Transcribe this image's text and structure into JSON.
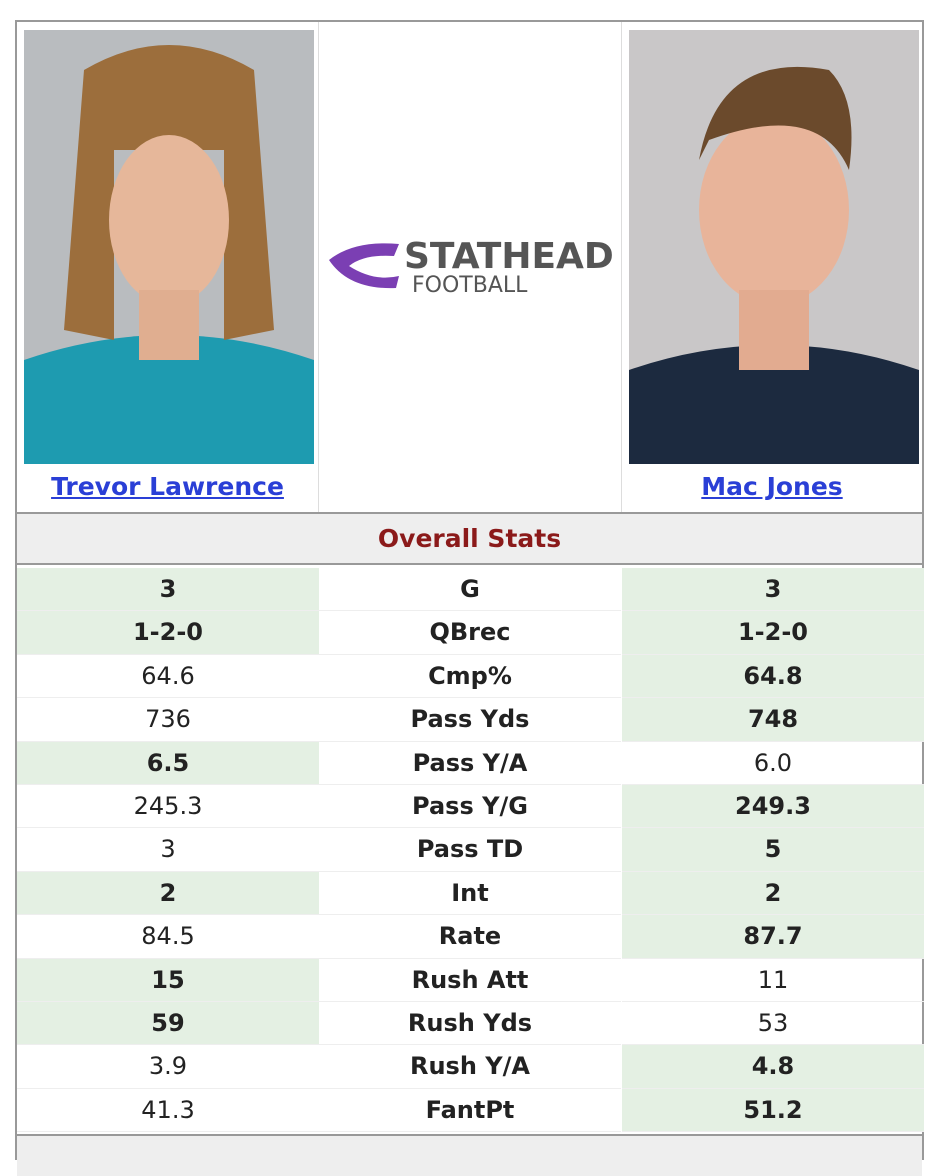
{
  "players": [
    {
      "name": "Trevor Lawrence",
      "jersey": "#1e9bb0"
    },
    {
      "name": "Mac Jones",
      "jersey": "#1c2a3f"
    }
  ],
  "logo": {
    "line1": "STATHEAD",
    "line2": "FOOTBALL"
  },
  "section": {
    "title": "Overall Stats"
  },
  "rows": [
    {
      "left": "3",
      "label": "G",
      "right": "3",
      "better": "both"
    },
    {
      "left": "1-2-0",
      "label": "QBrec",
      "right": "1-2-0",
      "better": "both"
    },
    {
      "left": "64.6",
      "label": "Cmp%",
      "right": "64.8",
      "better": "right"
    },
    {
      "left": "736",
      "label": "Pass Yds",
      "right": "748",
      "better": "right"
    },
    {
      "left": "6.5",
      "label": "Pass Y/A",
      "right": "6.0",
      "better": "left"
    },
    {
      "left": "245.3",
      "label": "Pass Y/G",
      "right": "249.3",
      "better": "right"
    },
    {
      "left": "3",
      "label": "Pass TD",
      "right": "5",
      "better": "right"
    },
    {
      "left": "2",
      "label": "Int",
      "right": "2",
      "better": "both"
    },
    {
      "left": "84.5",
      "label": "Rate",
      "right": "87.7",
      "better": "right"
    },
    {
      "left": "15",
      "label": "Rush Att",
      "right": "11",
      "better": "left"
    },
    {
      "left": "59",
      "label": "Rush Yds",
      "right": "53",
      "better": "left"
    },
    {
      "left": "3.9",
      "label": "Rush Y/A",
      "right": "4.8",
      "better": "right"
    },
    {
      "left": "41.3",
      "label": "FantPt",
      "right": "51.2",
      "better": "right"
    }
  ]
}
